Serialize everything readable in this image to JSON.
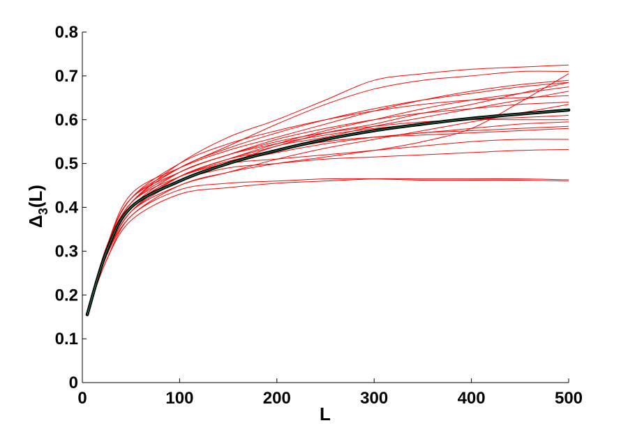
{
  "chart_data": {
    "type": "line",
    "title": "",
    "xlabel": "L",
    "ylabel_symbol": "Δ",
    "ylabel_sub": "3",
    "ylabel_arg": "(L)",
    "xlim": [
      0,
      500
    ],
    "ylim": [
      0,
      0.8
    ],
    "xticks": [
      0,
      100,
      200,
      300,
      400,
      500
    ],
    "xtick_labels": [
      "0",
      "100",
      "200",
      "300",
      "400",
      "500"
    ],
    "yticks": [
      0,
      0.1,
      0.2,
      0.3,
      0.4,
      0.5,
      0.6,
      0.7,
      0.8
    ],
    "ytick_labels": [
      "0",
      "0.1",
      "0.2",
      "0.3",
      "0.4",
      "0.5",
      "0.6",
      "0.7",
      "0.8"
    ],
    "grid": false,
    "colors": {
      "samples": "#ff0000",
      "mean": "#000000",
      "mean_core": "#2e8b57"
    },
    "x": [
      5,
      25,
      50,
      100,
      150,
      200,
      250,
      300,
      350,
      400,
      450,
      500
    ],
    "series": [
      {
        "role": "sample",
        "values": [
          0.16,
          0.31,
          0.42,
          0.49,
          0.54,
          0.59,
          0.635,
          0.67,
          0.69,
          0.7,
          0.71,
          0.71
        ]
      },
      {
        "role": "sample",
        "values": [
          0.16,
          0.31,
          0.41,
          0.5,
          0.56,
          0.6,
          0.645,
          0.69,
          0.705,
          0.715,
          0.72,
          0.725
        ]
      },
      {
        "role": "sample",
        "values": [
          0.16,
          0.31,
          0.43,
          0.49,
          0.53,
          0.56,
          0.59,
          0.62,
          0.645,
          0.665,
          0.68,
          0.69
        ]
      },
      {
        "role": "sample",
        "values": [
          0.16,
          0.3,
          0.4,
          0.47,
          0.51,
          0.54,
          0.57,
          0.59,
          0.615,
          0.635,
          0.66,
          0.685
        ]
      },
      {
        "role": "sample",
        "values": [
          0.16,
          0.29,
          0.39,
          0.46,
          0.5,
          0.54,
          0.56,
          0.585,
          0.605,
          0.625,
          0.645,
          0.665
        ]
      },
      {
        "role": "sample",
        "values": [
          0.16,
          0.29,
          0.38,
          0.45,
          0.48,
          0.5,
          0.515,
          0.53,
          0.55,
          0.58,
          0.64,
          0.705
        ]
      },
      {
        "role": "sample",
        "values": [
          0.16,
          0.28,
          0.37,
          0.43,
          0.445,
          0.455,
          0.46,
          0.465,
          0.465,
          0.465,
          0.465,
          0.463
        ]
      },
      {
        "role": "sample",
        "values": [
          0.16,
          0.28,
          0.38,
          0.44,
          0.455,
          0.46,
          0.465,
          0.465,
          0.462,
          0.462,
          0.462,
          0.46
        ]
      },
      {
        "role": "sample",
        "values": [
          0.16,
          0.3,
          0.4,
          0.47,
          0.51,
          0.53,
          0.55,
          0.56,
          0.57,
          0.575,
          0.58,
          0.585
        ]
      },
      {
        "role": "sample",
        "values": [
          0.16,
          0.3,
          0.41,
          0.48,
          0.52,
          0.55,
          0.57,
          0.585,
          0.595,
          0.6,
          0.6,
          0.6
        ]
      },
      {
        "role": "sample",
        "values": [
          0.16,
          0.3,
          0.41,
          0.47,
          0.5,
          0.51,
          0.52,
          0.53,
          0.54,
          0.55,
          0.555,
          0.555
        ]
      },
      {
        "role": "sample",
        "values": [
          0.16,
          0.29,
          0.4,
          0.46,
          0.49,
          0.5,
          0.51,
          0.515,
          0.52,
          0.525,
          0.53,
          0.532
        ]
      },
      {
        "role": "sample",
        "values": [
          0.16,
          0.3,
          0.4,
          0.48,
          0.52,
          0.555,
          0.58,
          0.6,
          0.615,
          0.625,
          0.635,
          0.64
        ]
      },
      {
        "role": "sample",
        "values": [
          0.16,
          0.31,
          0.42,
          0.48,
          0.52,
          0.545,
          0.565,
          0.58,
          0.59,
          0.6,
          0.605,
          0.61
        ]
      },
      {
        "role": "sample",
        "values": [
          0.16,
          0.29,
          0.39,
          0.47,
          0.51,
          0.545,
          0.575,
          0.6,
          0.625,
          0.645,
          0.66,
          0.675
        ]
      },
      {
        "role": "sample",
        "values": [
          0.16,
          0.3,
          0.41,
          0.49,
          0.535,
          0.57,
          0.6,
          0.625,
          0.645,
          0.66,
          0.675,
          0.685
        ]
      },
      {
        "role": "sample",
        "values": [
          0.16,
          0.31,
          0.42,
          0.5,
          0.545,
          0.575,
          0.6,
          0.62,
          0.635,
          0.645,
          0.65,
          0.655
        ]
      },
      {
        "role": "sample",
        "values": [
          0.16,
          0.3,
          0.4,
          0.46,
          0.5,
          0.525,
          0.545,
          0.56,
          0.57,
          0.58,
          0.59,
          0.595
        ]
      },
      {
        "role": "sample",
        "values": [
          0.16,
          0.29,
          0.39,
          0.45,
          0.48,
          0.51,
          0.535,
          0.555,
          0.575,
          0.595,
          0.615,
          0.635
        ]
      },
      {
        "role": "sample",
        "values": [
          0.16,
          0.3,
          0.4,
          0.47,
          0.505,
          0.53,
          0.55,
          0.56,
          0.565,
          0.57,
          0.575,
          0.58
        ]
      },
      {
        "role": "mean",
        "values": [
          0.155,
          0.3,
          0.4,
          0.46,
          0.5,
          0.53,
          0.555,
          0.575,
          0.59,
          0.603,
          0.613,
          0.622
        ]
      }
    ]
  }
}
